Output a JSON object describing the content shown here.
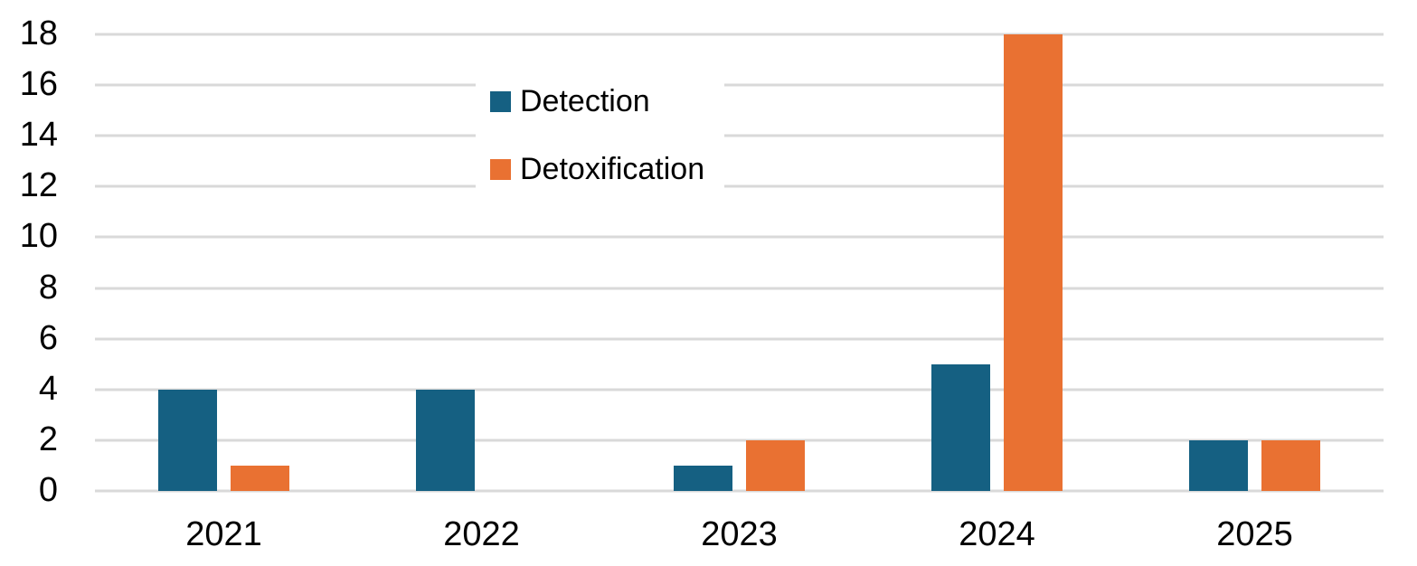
{
  "chart_data": {
    "type": "bar",
    "title": "",
    "xlabel": "",
    "ylabel": "",
    "categories": [
      "2021",
      "2022",
      "2023",
      "2024",
      "2025"
    ],
    "series": [
      {
        "name": "Detection",
        "color": "#156082",
        "values": [
          4,
          4,
          1,
          5,
          2
        ]
      },
      {
        "name": "Detoxification",
        "color": "#E97132",
        "values": [
          1,
          0,
          2,
          18,
          2
        ]
      }
    ],
    "ylim": [
      0,
      18
    ],
    "yticks": [
      "0",
      "2",
      "4",
      "6",
      "8",
      "10",
      "12",
      "14",
      "16",
      "18"
    ],
    "grid": true,
    "legend_position": "inside-top-center",
    "colors": {
      "gridline": "#D9D9D9",
      "text": "#000000",
      "background": "#FFFFFF"
    }
  }
}
